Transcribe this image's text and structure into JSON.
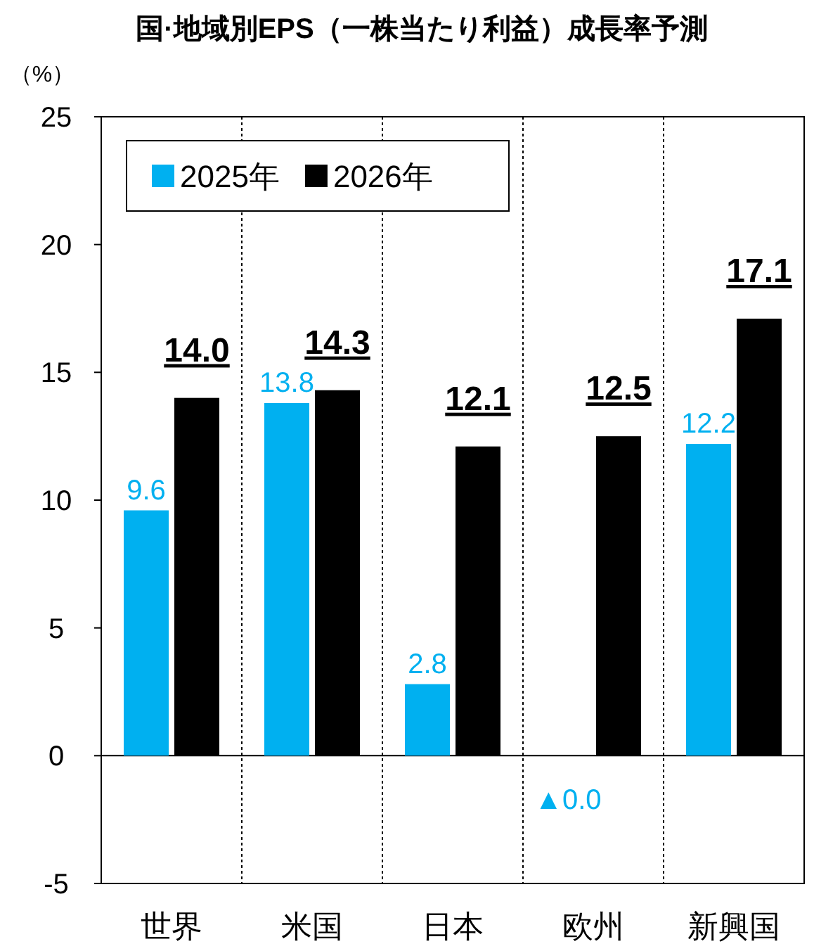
{
  "chart_data": {
    "type": "bar",
    "title": "国·地域別EPS（一株当たり利益）成長率予測",
    "ylabel": "（%）",
    "categories": [
      "世界",
      "米国",
      "日本",
      "欧州",
      "新興国"
    ],
    "series": [
      {
        "name": "2025年",
        "color": "#00b0f0",
        "values": [
          9.6,
          13.8,
          2.8,
          0.0,
          12.2
        ],
        "value_labels": [
          "9.6",
          "13.8",
          "2.8",
          "▲0.0",
          "12.2"
        ]
      },
      {
        "name": "2026年",
        "color": "#000000",
        "values": [
          14.0,
          14.3,
          12.1,
          12.5,
          17.1
        ],
        "value_labels": [
          "14.0",
          "14.3",
          "12.1",
          "12.5",
          "17.1"
        ]
      }
    ],
    "ylim": [
      -5,
      25
    ],
    "yticks": [
      -5,
      0,
      5,
      10,
      15,
      20,
      25
    ],
    "grid": "x",
    "legend": "top left"
  }
}
